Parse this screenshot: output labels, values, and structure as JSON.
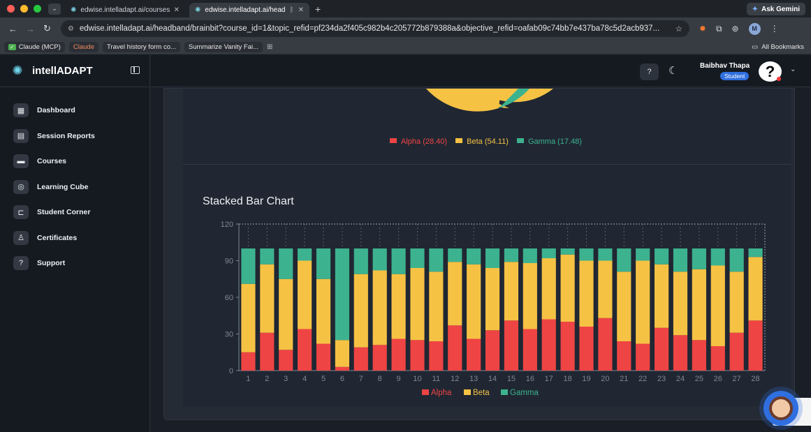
{
  "browser": {
    "tabs": [
      {
        "label": "edwise.intelladapt.ai/courses"
      },
      {
        "label": "edwise.intelladapt.ai/head"
      }
    ],
    "ask_gemini": "Ask Gemini",
    "url": "edwise.intelladapt.ai/headband/brainbit?course_id=1&topic_refid=pf234da2f405c982b4c205772b879388a&objective_refid=oafab09c74bb7e437ba78c5d2acb937...",
    "profile_initial": "M",
    "bookmarks": [
      "Claude (MCP)",
      "Claude",
      "Travel history form co...",
      "Summarize Vanity Fai..."
    ],
    "all_bookmarks": "All Bookmarks"
  },
  "app": {
    "logo": "intellADAPT",
    "menu": [
      {
        "label": "Dashboard",
        "icon": "dashboard-icon"
      },
      {
        "label": "Session Reports",
        "icon": "report-icon"
      },
      {
        "label": "Courses",
        "icon": "book-icon"
      },
      {
        "label": "Learning Cube",
        "icon": "brain-icon"
      },
      {
        "label": "Student Corner",
        "icon": "chart-icon"
      },
      {
        "label": "Certificates",
        "icon": "certificate-icon"
      },
      {
        "label": "Support",
        "icon": "help-icon"
      }
    ],
    "user": {
      "name": "Baibhav Thapa",
      "role": "Student",
      "avatar": "?"
    }
  },
  "pie": {
    "legend": [
      {
        "label": "Alpha (28.40)",
        "color": "#ef4444"
      },
      {
        "label": "Beta (54.11)",
        "color": "#f6c244"
      },
      {
        "label": "Gamma (17.48)",
        "color": "#3db28f"
      }
    ]
  },
  "chart_data": {
    "type": "bar",
    "stacked": true,
    "title": "Stacked Bar Chart",
    "ylim": [
      0,
      120
    ],
    "yticks": [
      0,
      30,
      60,
      90,
      120
    ],
    "categories": [
      "1",
      "2",
      "3",
      "4",
      "5",
      "6",
      "7",
      "8",
      "9",
      "10",
      "11",
      "12",
      "13",
      "14",
      "15",
      "16",
      "17",
      "18",
      "19",
      "20",
      "21",
      "22",
      "23",
      "24",
      "25",
      "26",
      "27",
      "28"
    ],
    "series": [
      {
        "name": "Alpha",
        "color": "#ef4444",
        "values": [
          15,
          31,
          17,
          34,
          22,
          3,
          19,
          21,
          26,
          25,
          24,
          37,
          26,
          33,
          41,
          34,
          42,
          40,
          36,
          43,
          24,
          22,
          35,
          29,
          25,
          20,
          31,
          41
        ]
      },
      {
        "name": "Beta",
        "color": "#f6c244",
        "values": [
          56,
          56,
          58,
          56,
          53,
          22,
          60,
          61,
          53,
          59,
          57,
          52,
          61,
          51,
          48,
          54,
          50,
          55,
          54,
          47,
          57,
          68,
          52,
          52,
          58,
          66,
          50,
          52
        ]
      },
      {
        "name": "Gamma",
        "color": "#3db28f",
        "values": [
          29,
          13,
          25,
          10,
          25,
          75,
          21,
          18,
          21,
          16,
          19,
          11,
          13,
          16,
          11,
          12,
          8,
          5,
          10,
          10,
          19,
          10,
          13,
          19,
          17,
          14,
          19,
          7
        ]
      }
    ],
    "legend": "bottom-center",
    "grid": false
  }
}
